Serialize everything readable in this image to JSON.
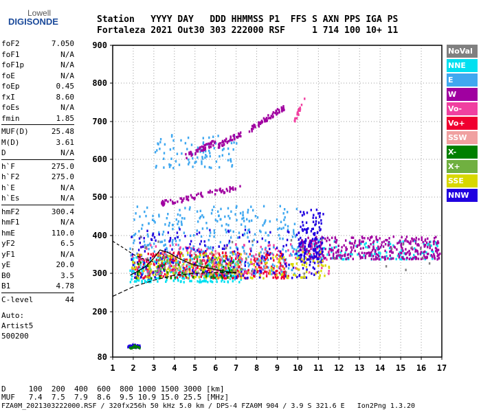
{
  "logo": {
    "line1": "Lowell",
    "line2": "DIGISONDE"
  },
  "header": {
    "line1": "Station   YYYY DAY   DDD HHMMSS P1  FFS S AXN PPS IGA PS",
    "line2": "Fortaleza 2021 Out30 303 222000 RSF     1 714 100 10+ 11"
  },
  "params": [
    [
      {
        "k": "foF2",
        "v": "7.050"
      },
      {
        "k": "foF1",
        "v": "N/A"
      },
      {
        "k": "foF1p",
        "v": "N/A"
      },
      {
        "k": "foE",
        "v": "N/A"
      },
      {
        "k": "foEp",
        "v": "0.45"
      },
      {
        "k": "fxI",
        "v": "8.60"
      },
      {
        "k": "foEs",
        "v": "N/A"
      },
      {
        "k": "fmin",
        "v": "1.85"
      }
    ],
    [
      {
        "k": "MUF(D)",
        "v": "25.48"
      },
      {
        "k": "M(D)",
        "v": "3.61"
      },
      {
        "k": "D",
        "v": "N/A"
      }
    ],
    [
      {
        "k": "h`F",
        "v": "275.0"
      },
      {
        "k": "h`F2",
        "v": "275.0"
      },
      {
        "k": "h`E",
        "v": "N/A"
      },
      {
        "k": "h`Es",
        "v": "N/A"
      }
    ],
    [
      {
        "k": "hmF2",
        "v": "300.4"
      },
      {
        "k": "hmF1",
        "v": "N/A"
      },
      {
        "k": "hmE",
        "v": "110.0"
      },
      {
        "k": "yF2",
        "v": "6.5"
      },
      {
        "k": "yF1",
        "v": "N/A"
      },
      {
        "k": "yE",
        "v": "20.0"
      },
      {
        "k": "B0",
        "v": "3.5"
      },
      {
        "k": "B1",
        "v": "4.78"
      }
    ],
    [
      {
        "k": "C-level",
        "v": "44"
      }
    ]
  ],
  "notes": [
    "Auto:",
    "Artist5",
    "500200"
  ],
  "legend": [
    {
      "label": "NoVal",
      "color": "#808080"
    },
    {
      "label": "NNE",
      "color": "#00e0f0"
    },
    {
      "label": "E",
      "color": "#40a8f0"
    },
    {
      "label": "W",
      "color": "#a000a0"
    },
    {
      "label": "Vo-",
      "color": "#f040a0"
    },
    {
      "label": "Vo+",
      "color": "#f00030"
    },
    {
      "label": "SSW",
      "color": "#f0a0a0"
    },
    {
      "label": "X-",
      "color": "#008000"
    },
    {
      "label": "X+",
      "color": "#70b040"
    },
    {
      "label": "SSE",
      "color": "#d8d800"
    },
    {
      "label": "NNW",
      "color": "#2000e0"
    }
  ],
  "footer": {
    "d_line": "D     100  200  400  600  800 1000 1500 3000 [km]",
    "muf_line": "MUF   7.4  7.5  7.9  8.6  9.5 10.9 15.0 25.5 [MHz]",
    "file_line": "FZA0M_2021303222000.RSF / 320fx256h 50 kHz 5.0 km / DPS-4 FZA0M 904 / 3.9 S 321.6 E   Ion2Png 1.3.20"
  },
  "chart_data": {
    "type": "scatter",
    "xlim": [
      1,
      17
    ],
    "ylim": [
      80,
      900
    ],
    "xticks": [
      "1",
      "2",
      "3",
      "4",
      "5",
      "6",
      "7",
      "8",
      "9",
      "10",
      "11",
      "12",
      "13",
      "14",
      "15",
      "16",
      "17"
    ],
    "yticks": [
      "80",
      "200",
      "300",
      "400",
      "500",
      "600",
      "700",
      "800",
      "900"
    ],
    "grid": "dotted",
    "echo_clusters": [
      {
        "name": "E",
        "x": [
          1.8,
          10.0
        ],
        "y": [
          300,
          480
        ],
        "n": 420
      },
      {
        "name": "E",
        "x": [
          3.0,
          7.0
        ],
        "y": [
          580,
          670
        ],
        "n": 90
      },
      {
        "name": "NNE",
        "x": [
          1.8,
          7.2
        ],
        "y": [
          280,
          350
        ],
        "n": 260
      },
      {
        "name": "NNE",
        "x": [
          9.8,
          16.9
        ],
        "y": [
          340,
          390
        ],
        "n": 140
      },
      {
        "name": "W",
        "x": [
          10.0,
          16.9
        ],
        "y": [
          340,
          400
        ],
        "n": 360
      },
      {
        "name": "Vo+",
        "x": [
          2.0,
          9.5
        ],
        "y": [
          290,
          360
        ],
        "n": 320
      },
      {
        "name": "Vo-",
        "x": [
          1.9,
          11.5
        ],
        "y": [
          300,
          380
        ],
        "n": 160
      },
      {
        "name": "NNW",
        "x": [
          1.8,
          11.0
        ],
        "y": [
          290,
          420
        ],
        "n": 220
      },
      {
        "name": "NNW",
        "x": [
          10.0,
          11.2
        ],
        "y": [
          330,
          470
        ],
        "n": 120
      },
      {
        "name": "SSE",
        "x": [
          1.9,
          11.5
        ],
        "y": [
          290,
          360
        ],
        "n": 200
      },
      {
        "name": "X-",
        "x": [
          2.0,
          7.0
        ],
        "y": [
          290,
          340
        ],
        "n": 50
      },
      {
        "name": "X+",
        "x": [
          3.0,
          7.5
        ],
        "y": [
          300,
          350
        ],
        "n": 50
      },
      {
        "name": "SSW",
        "x": [
          3.0,
          8.5
        ],
        "y": [
          300,
          360
        ],
        "n": 40
      },
      {
        "name": "NoVal",
        "x": [
          1.8,
          16.9
        ],
        "y": [
          300,
          400
        ],
        "n": 30
      },
      {
        "name": "NNW",
        "x": [
          1.7,
          2.3
        ],
        "y": [
          108,
          116
        ],
        "n": 40
      },
      {
        "name": "X-",
        "x": [
          1.7,
          2.3
        ],
        "y": [
          106,
          114
        ],
        "n": 15
      }
    ],
    "echo_traces": [
      {
        "name": "W",
        "x": [
          3.3,
          7.2
        ],
        "y": [
          485,
          530
        ],
        "n": 70
      },
      {
        "name": "W",
        "x": [
          4.5,
          6.0
        ],
        "y": [
          610,
          650
        ],
        "n": 50
      },
      {
        "name": "W",
        "x": [
          6.1,
          7.2
        ],
        "y": [
          640,
          670
        ],
        "n": 40
      },
      {
        "name": "W",
        "x": [
          7.6,
          9.3
        ],
        "y": [
          680,
          740
        ],
        "n": 60
      },
      {
        "name": "Vo-",
        "x": [
          9.8,
          10.3
        ],
        "y": [
          700,
          770
        ],
        "n": 20
      }
    ],
    "profile_curves": [
      {
        "x": [
          1.0,
          2.0,
          3.0,
          4.0,
          5.0,
          6.0,
          7.0,
          7.05
        ],
        "y": [
          240,
          265,
          282,
          295,
          300,
          302,
          302,
          302
        ]
      },
      {
        "x": [
          1.0,
          1.5,
          2.0,
          2.5,
          3.0
        ],
        "y": [
          385,
          368,
          350,
          338,
          330
        ]
      }
    ],
    "trace_line": {
      "x": [
        1.85,
        2.2,
        2.6,
        3.0,
        3.3,
        3.7,
        4.2,
        4.8,
        5.3,
        5.8,
        6.2,
        6.6,
        7.0
      ],
      "y": [
        295,
        305,
        318,
        340,
        362,
        355,
        340,
        325,
        318,
        312,
        308,
        304,
        300
      ]
    }
  }
}
